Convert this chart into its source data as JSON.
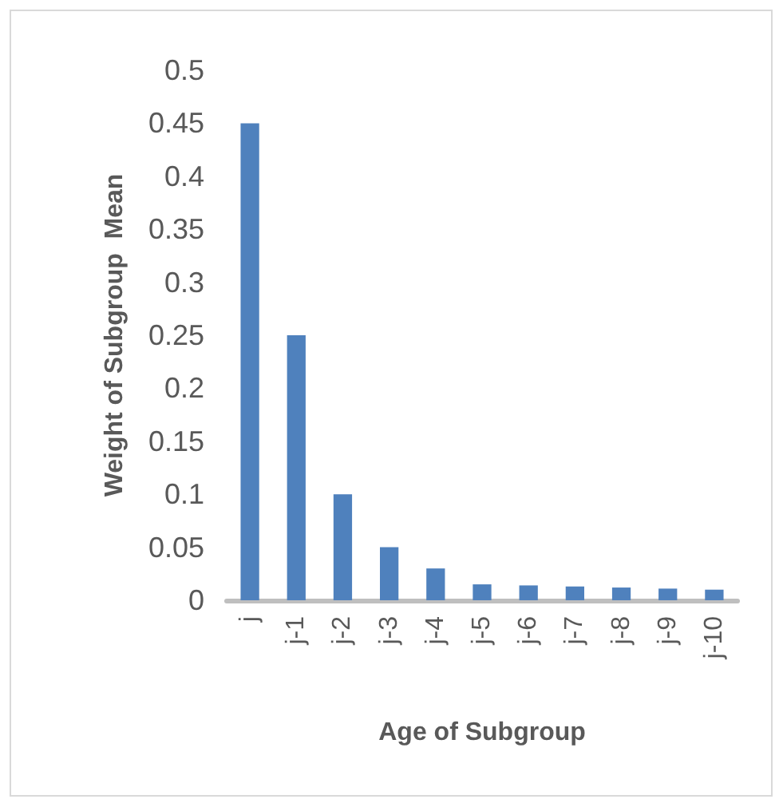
{
  "chart_data": {
    "type": "bar",
    "xlabel": "Age of Subgroup",
    "ylabel": "Weight of Subgroup  Mean",
    "categories": [
      "j",
      "j-1",
      "j-2",
      "j-3",
      "j-4",
      "j-5",
      "j-6",
      "j-7",
      "j-8",
      "j-9",
      "j-10"
    ],
    "values": [
      0.45,
      0.25,
      0.1,
      0.05,
      0.03,
      0.015,
      0.014,
      0.013,
      0.012,
      0.011,
      0.01
    ],
    "color": "#4f81bd",
    "ylim": [
      0,
      0.5
    ],
    "yticks": [
      0,
      0.05,
      0.1,
      0.15,
      0.2,
      0.25,
      0.3,
      0.35,
      0.4,
      0.45,
      0.5
    ]
  }
}
